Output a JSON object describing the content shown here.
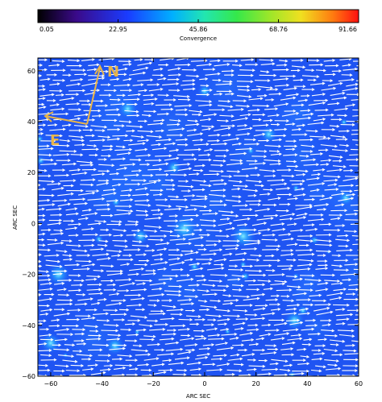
{
  "chart_data": {
    "type": "heatmap",
    "title": "",
    "colorbar": {
      "label": "Convergence",
      "min": 0.05,
      "max": 91.66,
      "tick_labels": [
        "0.05",
        "22.95",
        "45.86",
        "68.76",
        "91.66"
      ],
      "tick_values": [
        0.05,
        22.95,
        45.86,
        68.76,
        91.66
      ],
      "placement": "top"
    },
    "xlabel": "ARC SEC",
    "ylabel": "ARC SEC",
    "xlim": [
      -65,
      60
    ],
    "ylim": [
      -60,
      65
    ],
    "xticks": [
      -60,
      -40,
      -20,
      0,
      20,
      40,
      60
    ],
    "yticks": [
      60,
      40,
      20,
      0,
      -20,
      -40,
      -60
    ],
    "background_value": 28,
    "bright_spots": [
      {
        "x": -57,
        "y": -20,
        "value": 45
      },
      {
        "x": -60,
        "y": -47,
        "value": 42
      },
      {
        "x": -8,
        "y": -2,
        "value": 50
      },
      {
        "x": 15,
        "y": -5,
        "value": 48
      },
      {
        "x": -25,
        "y": -5,
        "value": 38
      },
      {
        "x": -12,
        "y": 22,
        "value": 36
      },
      {
        "x": 25,
        "y": 35,
        "value": 38
      },
      {
        "x": -30,
        "y": 45,
        "value": 40
      },
      {
        "x": 35,
        "y": -38,
        "value": 42
      },
      {
        "x": -35,
        "y": -48,
        "value": 40
      },
      {
        "x": 55,
        "y": 10,
        "value": 36
      },
      {
        "x": 0,
        "y": 52,
        "value": 34
      }
    ],
    "vector_field": {
      "description_free": true,
      "dominant_angle_deg": 2,
      "color": "#ffffff"
    },
    "compass": {
      "north_label": "N",
      "east_label": "E",
      "color": "#e8b54a"
    }
  }
}
